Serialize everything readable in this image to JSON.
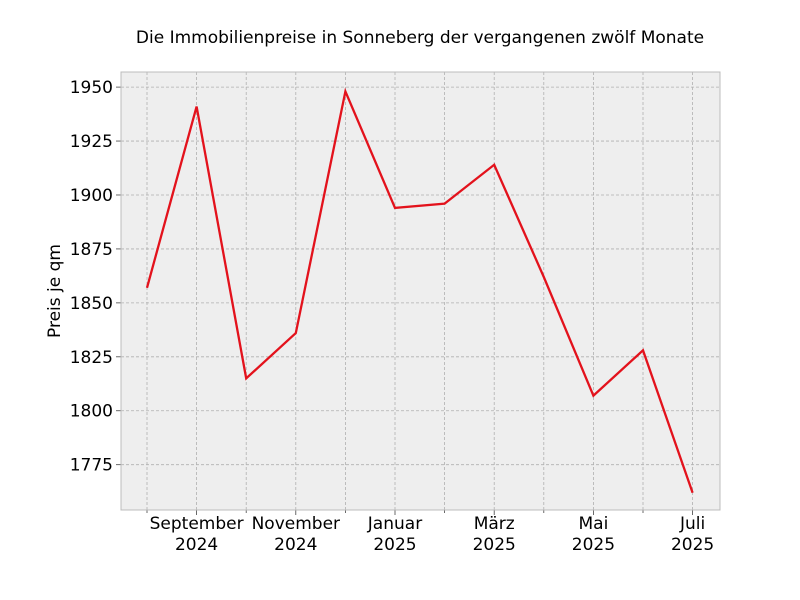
{
  "chart_data": {
    "type": "line",
    "title": "Die Immobilienpreise in Sonneberg der vergangenen zwölf Monate",
    "xlabel": "",
    "ylabel": "Preis je qm",
    "x": [
      "2024-08",
      "2024-09",
      "2024-10",
      "2024-11",
      "2024-12",
      "2025-01",
      "2025-02",
      "2025-03",
      "2025-04",
      "2025-05",
      "2025-06",
      "2025-07"
    ],
    "series": [
      {
        "values": [
          1857,
          1941,
          1815,
          1836,
          1948,
          1894,
          1896,
          1914,
          1862,
          1807,
          1828,
          1762
        ],
        "color": "#e3121c"
      }
    ],
    "ylim": [
      1754,
      1957
    ],
    "yticks": [
      1775,
      1800,
      1825,
      1850,
      1875,
      1900,
      1925,
      1950
    ],
    "xtick_labels": [
      {
        "month": "September",
        "year": "2024",
        "index": 1
      },
      {
        "month": "November",
        "year": "2024",
        "index": 3
      },
      {
        "month": "Januar",
        "year": "2025",
        "index": 5
      },
      {
        "month": "März",
        "year": "2025",
        "index": 7
      },
      {
        "month": "Mai",
        "year": "2025",
        "index": 9
      },
      {
        "month": "Juli",
        "year": "2025",
        "index": 11
      }
    ],
    "grid": true,
    "colors": {
      "plot_background": "#eeeeee",
      "grid": "#b0b0b0",
      "frame": "#bcbcbc"
    }
  }
}
